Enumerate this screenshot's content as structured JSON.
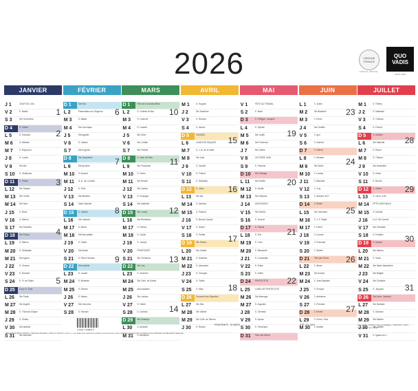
{
  "year": "2026",
  "badge": {
    "label": "ORIGINE FRANCE",
    "sub": "OFFICIAL ORIGINE"
  },
  "brand": {
    "line1": "QUO",
    "line2": "VADIS",
    "sub": "PARIS 1952"
  },
  "months": [
    {
      "name": "JANVIER",
      "color": "#2d3a66",
      "tint": "#c9cde0",
      "days": [
        "J 1",
        "V 2",
        "S 3",
        "D 4",
        "L 5",
        "M 6",
        "M 7",
        "J 8",
        "V 9",
        "S 10",
        "D 11",
        "L 12",
        "M 13",
        "M 14",
        "J 15",
        "V 16",
        "S 17",
        "D 18",
        "L 19",
        "M 20",
        "M 21",
        "J 22",
        "V 23",
        "S 24",
        "D 25",
        "L 26",
        "M 27",
        "M 28",
        "J 29",
        "V 30",
        "S 31"
      ],
      "saints": [
        "JOUR DE L'AN",
        "S. Basile",
        "Ste Geneviève",
        "S. Odilon",
        "S. Édouard",
        "S. Mélaine",
        "S. Raymond",
        "S. Lucien",
        "Ste Alix",
        "S. Guillaume",
        "S. Paulin",
        "Ste Tatiana",
        "Ste Yvette",
        "Ste Nina",
        "S. Rémi",
        "S. Marcel",
        "Ste Roseline",
        "Ste Prisca",
        "S. Marius",
        "S. Sébastien",
        "Ste Agnès",
        "S. Vincent",
        "S. Barnard",
        "S. Fr. de Sales",
        "Conv. S. Paul",
        "Ste Paule",
        "Ste Angèle",
        "S. Thomas d'Aquin",
        "S. Gildas",
        "Ste Martine",
        "Ste Marcelle"
      ],
      "weeks": [
        "1",
        "2",
        "3",
        "4",
        "5"
      ],
      "marks": [
        0,
        3,
        10,
        17,
        24
      ]
    },
    {
      "name": "FÉVRIER",
      "color": "#3aa2c4",
      "tint": "#c6e4ef",
      "days": [
        "D 1",
        "L 2",
        "M 3",
        "M 4",
        "J 5",
        "V 6",
        "S 7",
        "D 8",
        "L 9",
        "M 10",
        "M 11",
        "J 12",
        "V 13",
        "S 14",
        "D 15",
        "L 16",
        "M 17",
        "M 18",
        "J 19",
        "V 20",
        "S 21",
        "D 22",
        "L 23",
        "M 24",
        "M 25",
        "J 26",
        "V 27",
        "S 28"
      ],
      "saints": [
        "Ste Ella",
        "Présentation du Seigneur",
        "S. Blaise",
        "Ste Véronique",
        "Ste Agathe",
        "S. Gaston",
        "Ste Eugénie",
        "Ste Jacqueline",
        "Ste Apolline",
        "S. Arnaud",
        "N.-D. de Lourdes",
        "S. Félix",
        "Ste Béatrice",
        "Saint-Valentin",
        "S. Claude",
        "Ste Julienne",
        "S. Alexis",
        "Ste Bernadette",
        "S. Gabin",
        "Ste Aimée",
        "S. Pierre Damien",
        "Ste Isabelle",
        "S. Lazare",
        "S. Modeste",
        "S. Roméo",
        "S. Nestor",
        "Ste Honorine",
        "S. Romain"
      ],
      "weeks": [
        "6",
        "7",
        "8",
        "9"
      ],
      "marks": [
        0,
        7,
        14,
        21
      ]
    },
    {
      "name": "MARS",
      "color": "#3e8f5a",
      "tint": "#c8e2cf",
      "days": [
        "D 1",
        "L 2",
        "M 3",
        "M 4",
        "J 5",
        "V 6",
        "S 7",
        "D 8",
        "L 9",
        "M 10",
        "M 11",
        "J 12",
        "V 13",
        "S 14",
        "D 15",
        "L 16",
        "M 17",
        "M 18",
        "J 19",
        "V 20",
        "S 21",
        "D 22",
        "L 23",
        "M 24",
        "M 25",
        "J 26",
        "V 27",
        "S 28",
        "D 29",
        "L 30",
        "M 31"
      ],
      "saints": [
        "Fête des Grands-Mères",
        "S. Charles le Bon",
        "S. Guénolé",
        "S. Casimir",
        "Ste Olive",
        "Ste Colette",
        "Ste Félicité",
        "S. Jean de Dieu",
        "Ste Françoise",
        "S. Vivien",
        "Ste Rosine",
        "Ste Justine",
        "S. Rodrigue",
        "Ste Mathilde",
        "Ste Louise",
        "Ste Bénédicte",
        "S. Patrice",
        "S. Cyrille",
        "S. Joseph",
        "PRINTEMPS",
        "Ste Clémence",
        "Ste Léa",
        "S. Victorien",
        "Ste Cath. de Suède",
        "Annonciation",
        "Ste Larissa",
        "S. Habib",
        "S. Gontran",
        "Ste Gwladys",
        "S. Amédée",
        "S. Benjamin"
      ],
      "weeks": [
        "10",
        "11",
        "12",
        "13",
        "14"
      ],
      "marks": [
        0,
        7,
        14,
        21,
        28
      ]
    },
    {
      "name": "AVRIL",
      "color": "#f2b733",
      "tint": "#fbe7b6",
      "days": [
        "M 1",
        "J 2",
        "V 3",
        "S 4",
        "D 5",
        "L 6",
        "M 7",
        "M 8",
        "J 9",
        "V 10",
        "S 11",
        "D 12",
        "L 13",
        "M 14",
        "M 15",
        "J 16",
        "V 17",
        "S 18",
        "D 19",
        "L 20",
        "M 21",
        "M 22",
        "J 23",
        "V 24",
        "S 25",
        "D 26",
        "L 27",
        "M 28",
        "M 29",
        "J 30"
      ],
      "saints": [
        "S. Hugues",
        "Ste Sandrine",
        "S. Richard",
        "S. Isidore",
        "PÂQUES",
        "LUNDI DE PÂQUES",
        "S. J.-B. de la Salle",
        "Ste Julie",
        "S. Gautier",
        "S. Fulbert",
        "S. Stanislas",
        "S. Jules",
        "Ste Ida",
        "S. Maxime",
        "S. Paterne",
        "S. Benoît-Joseph",
        "S. Anicet",
        "S. Parfait",
        "Ste Emma",
        "Ste Odette",
        "S. Anselme",
        "S. Alexandre",
        "S. Georges",
        "S. Fidèle",
        "S. Marc",
        "Souvenir des Déportés",
        "Ste Zita",
        "Ste Valérie",
        "Ste Cath. de Sienne",
        "S. Robert"
      ],
      "weeks": [
        "15",
        "16",
        "17",
        "18"
      ],
      "marks": [
        4,
        11,
        18,
        25
      ]
    },
    {
      "name": "MAI",
      "color": "#e55a6f",
      "tint": "#f6c5cc",
      "days": [
        "V 1",
        "S 2",
        "D 3",
        "L 4",
        "M 5",
        "M 6",
        "J 7",
        "V 8",
        "S 9",
        "D 10",
        "L 11",
        "M 12",
        "M 13",
        "J 14",
        "V 15",
        "S 16",
        "D 17",
        "L 18",
        "M 19",
        "M 20",
        "J 21",
        "V 22",
        "S 23",
        "D 24",
        "L 25",
        "M 26",
        "M 27",
        "J 28",
        "V 29",
        "S 30",
        "D 31"
      ],
      "saints": [
        "FÊTE DU TRAVAIL",
        "S. Boris",
        "S. Philippe, Jacques",
        "S. Sylvain",
        "Ste Judith",
        "Ste Prudence",
        "Ste Gisèle",
        "VICTOIRE 1945",
        "S. Pacôme",
        "Ste Solange",
        "Ste Estelle",
        "S. Achille",
        "Ste Rolande",
        "ASCENSION",
        "Ste Denise",
        "S. Honoré",
        "S. Pascal",
        "S. Éric",
        "S. Yves",
        "S. Bernardin",
        "S. Constantin",
        "S. Émile",
        "S. Didier",
        "PENTECÔTE",
        "LUNDI DE PENTECÔTE",
        "Ste Bérenger",
        "S. Augustin",
        "S. Germain",
        "S. Aymar",
        "S. Ferdinand",
        "Fête des Mères"
      ],
      "weeks": [
        "19",
        "20",
        "21",
        "22"
      ],
      "marks": [
        3,
        10,
        17,
        24
      ]
    },
    {
      "name": "JUIN",
      "color": "#ec7046",
      "tint": "#f9d2c2",
      "days": [
        "L 1",
        "M 2",
        "M 3",
        "J 4",
        "V 5",
        "S 6",
        "D 7",
        "L 8",
        "M 9",
        "M 10",
        "J 11",
        "V 12",
        "S 13",
        "D 14",
        "L 15",
        "M 16",
        "M 17",
        "J 18",
        "V 19",
        "S 20",
        "D 21",
        "L 22",
        "M 23",
        "M 24",
        "J 25",
        "V 26",
        "S 27",
        "D 28",
        "L 29",
        "M 30"
      ],
      "saints": [
        "S. Justin",
        "Ste Blandine",
        "S. Kévin",
        "Ste Clotilde",
        "S. Igor",
        "S. Norbert",
        "S. Gilbert",
        "S. Médard",
        "Ste Diane",
        "S. Landry",
        "S. Barnabé",
        "S. Guy",
        "S. Antoine de P.",
        "S. Élisée",
        "Ste Germaine",
        "S. J.-F. Régis",
        "S. Hervé",
        "S. Léonce",
        "S. Romuald",
        "S. Silvère",
        "Fête des Pères",
        "S. Alban",
        "Ste Audrey",
        "S. Jean-Baptiste",
        "S. Prosper",
        "S. Anthelme",
        "S. Fernand",
        "S. Irénée",
        "S. Pierre, Paul",
        "S. Martial"
      ],
      "weeks": [
        "23",
        "24",
        "25",
        "26",
        "27"
      ],
      "marks": [
        0,
        7,
        14,
        21,
        28
      ]
    },
    {
      "name": "JUILLET",
      "color": "#e0404d",
      "tint": "#f5c0c4",
      "days": [
        "M 1",
        "J 2",
        "V 3",
        "S 4",
        "D 5",
        "L 6",
        "M 7",
        "M 8",
        "J 9",
        "V 10",
        "S 11",
        "D 12",
        "L 13",
        "M 14",
        "M 15",
        "J 16",
        "V 17",
        "S 18",
        "D 19",
        "L 20",
        "M 21",
        "M 22",
        "J 23",
        "V 24",
        "S 25",
        "D 26",
        "L 27",
        "M 28",
        "M 29",
        "J 30",
        "V 31"
      ],
      "saints": [
        "S. Thierry",
        "S. Martinien",
        "S. Thomas",
        "S. Florent",
        "S. Antoine",
        "Ste Mariette",
        "S. Raoul",
        "S. Thibaut",
        "Ste Amandine",
        "S. Ulrich",
        "S. Benoît",
        "S. Olivier",
        "S. Henri, Joël",
        "FÊTE NATIONALE",
        "S. Donald",
        "N.-D. Mt Carmel",
        "Ste Charlotte",
        "S. Frédéric",
        "S. Arsène",
        "Ste Marina",
        "S. Victor",
        "Ste Marie-Madeleine",
        "Ste Brigitte",
        "Ste Christine",
        "S. Jacques",
        "Ste Anne, Joachim",
        "Ste Nathalie",
        "S. Samson",
        "Ste Marthe",
        "Ste Juliette",
        "S. Ignace de L."
      ],
      "weeks": [
        "28",
        "29",
        "30",
        "31"
      ],
      "marks": [
        4,
        11,
        18,
        25
      ]
    }
  ],
  "footer": {
    "printemps": "PRINTEMPS : 20 MARS",
    "ete": "ÉTÉ : 21 JUIN",
    "brandnote": "Quo Vadis • Marché sous emballage • 1FR/1001 • 4107 • Conception Quo Vadis",
    "barcode_num": "3 1001 7 430001 5",
    "fineprint": "RÉALISÉ EN ÉCO-CONÇU • Vacances Scolaires • Zone A • Zone B • Zone C • Les dates des vacances scolaires sont données à titre indicatif et peuvent être modifiées par le Ministère de l'Éducation Nationale."
  }
}
